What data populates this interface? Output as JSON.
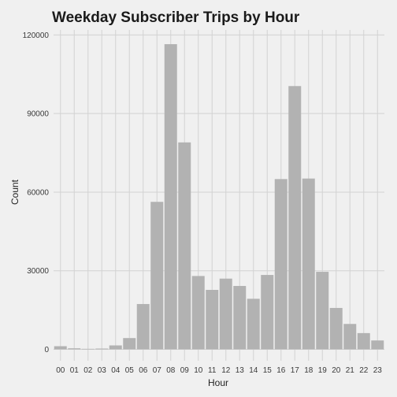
{
  "colors": {
    "background": "#f0f0f0",
    "grid": "#d2d2d2",
    "bar": "#b2b2b2"
  },
  "chart_data": {
    "type": "bar",
    "title": "Weekday Subscriber Trips by Hour",
    "xlabel": "Hour",
    "ylabel": "Count",
    "grid": true,
    "ylim": [
      0,
      125000
    ],
    "yticks": [
      0,
      30000,
      60000,
      90000,
      120000
    ],
    "ytick_labels": [
      "0",
      "30000",
      "60000",
      "90000",
      "120000"
    ],
    "categories": [
      "00",
      "01",
      "02",
      "03",
      "04",
      "05",
      "06",
      "07",
      "08",
      "09",
      "10",
      "11",
      "12",
      "13",
      "14",
      "15",
      "16",
      "17",
      "18",
      "19",
      "20",
      "21",
      "22",
      "23"
    ],
    "values": [
      1200,
      400,
      200,
      300,
      1500,
      4300,
      17300,
      56300,
      116500,
      79000,
      28000,
      22700,
      27000,
      24200,
      19300,
      28400,
      65000,
      100500,
      65200,
      29600,
      15800,
      9700,
      6200,
      3400
    ]
  }
}
